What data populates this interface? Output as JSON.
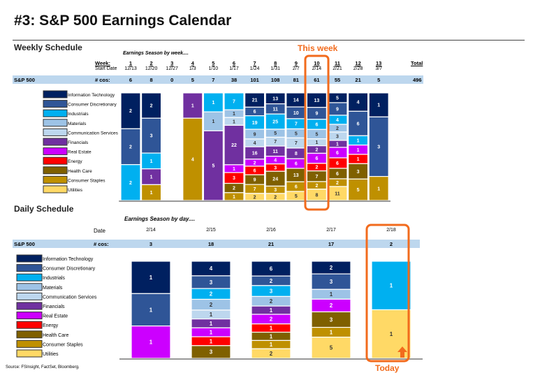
{
  "title": "#3: S&P 500 Earnings Calendar",
  "weekly": {
    "heading": "Weekly Schedule",
    "subtitle": "Earnings Season by week....",
    "week_label": "Week:",
    "start_label": "Start Date",
    "row_label": "S&P 500",
    "cos_label": "# cos:",
    "total_label": "Total",
    "total": "496",
    "annotation": "This week"
  },
  "daily": {
    "heading": "Daily Schedule",
    "subtitle": "Earnings Season by day....",
    "date_label": "Date",
    "row_label": "S&P 500",
    "cos_label": "# cos:",
    "annotation": "Today"
  },
  "source": "Source: FSInsight, FactSet, Bloomberg.",
  "chart_data": [
    {
      "type": "bar",
      "stacked": "percent",
      "title": "Earnings Season by week....",
      "categories": [
        "1",
        "2",
        "3",
        "4",
        "5",
        "6",
        "7",
        "8",
        "9",
        "10",
        "11",
        "12",
        "13"
      ],
      "start_dates": [
        "12/13",
        "12/20",
        "12/27",
        "1/3",
        "1/10",
        "1/17",
        "1/24",
        "1/31",
        "2/7",
        "2/14",
        "2/21",
        "2/28",
        "3/7"
      ],
      "totals": [
        6,
        8,
        0,
        5,
        7,
        38,
        101,
        108,
        81,
        61,
        55,
        21,
        5
      ],
      "highlight": "10",
      "series": [
        {
          "name": "Information Technology",
          "color": "#002060",
          "values": [
            2,
            2,
            0,
            0,
            0,
            0,
            21,
            13,
            14,
            13,
            5,
            4,
            1
          ]
        },
        {
          "name": "Consumer Discretionary",
          "color": "#2f5597",
          "values": [
            2,
            3,
            0,
            0,
            0,
            0,
            6,
            11,
            10,
            9,
            9,
            6,
            3
          ]
        },
        {
          "name": "Industrials",
          "color": "#00b0f0",
          "values": [
            2,
            1,
            0,
            0,
            1,
            7,
            19,
            25,
            7,
            6,
            4,
            1,
            0
          ]
        },
        {
          "name": "Materials",
          "color": "#9dc3e6",
          "values": [
            0,
            0,
            0,
            0,
            1,
            1,
            9,
            5,
            5,
            5,
            2,
            0,
            0
          ]
        },
        {
          "name": "Communication Services",
          "color": "#bdd7ee",
          "values": [
            0,
            0,
            0,
            0,
            0,
            1,
            4,
            7,
            7,
            1,
            3,
            0,
            0
          ]
        },
        {
          "name": "Financials",
          "color": "#7030a0",
          "values": [
            0,
            1,
            0,
            1,
            5,
            22,
            16,
            11,
            8,
            2,
            1,
            0,
            0
          ]
        },
        {
          "name": "Real Estate",
          "color": "#cc00ff",
          "values": [
            0,
            0,
            0,
            0,
            0,
            1,
            2,
            4,
            6,
            6,
            6,
            1,
            0
          ]
        },
        {
          "name": "Energy",
          "color": "#ff0000",
          "values": [
            0,
            0,
            0,
            0,
            0,
            3,
            6,
            3,
            0,
            2,
            6,
            1,
            0
          ]
        },
        {
          "name": "Health Care",
          "color": "#7f6000",
          "values": [
            0,
            0,
            0,
            0,
            0,
            2,
            9,
            24,
            13,
            7,
            6,
            3,
            0
          ]
        },
        {
          "name": "Consumer Staples",
          "color": "#bf9000",
          "values": [
            0,
            1,
            0,
            4,
            0,
            1,
            7,
            3,
            6,
            2,
            2,
            5,
            1
          ]
        },
        {
          "name": "Utilities",
          "color": "#ffd966",
          "values": [
            0,
            0,
            0,
            0,
            0,
            0,
            2,
            2,
            5,
            8,
            11,
            0,
            0
          ]
        }
      ]
    },
    {
      "type": "bar",
      "stacked": "percent",
      "title": "Earnings Season by day....",
      "categories": [
        "2/14",
        "2/15",
        "2/16",
        "2/17",
        "2/18"
      ],
      "totals": [
        3,
        18,
        21,
        17,
        2
      ],
      "highlight": "2/18",
      "series": [
        {
          "name": "Information Technology",
          "color": "#002060",
          "values": [
            1,
            4,
            6,
            2,
            0
          ]
        },
        {
          "name": "Consumer Discretionary",
          "color": "#2f5597",
          "values": [
            1,
            3,
            2,
            3,
            0
          ]
        },
        {
          "name": "Industrials",
          "color": "#00b0f0",
          "values": [
            0,
            2,
            3,
            0,
            1
          ]
        },
        {
          "name": "Materials",
          "color": "#9dc3e6",
          "values": [
            0,
            2,
            2,
            1,
            0
          ]
        },
        {
          "name": "Communication Services",
          "color": "#bdd7ee",
          "values": [
            0,
            1,
            0,
            0,
            0
          ]
        },
        {
          "name": "Financials",
          "color": "#7030a0",
          "values": [
            0,
            1,
            1,
            0,
            0
          ]
        },
        {
          "name": "Real Estate",
          "color": "#cc00ff",
          "values": [
            1,
            1,
            2,
            2,
            0
          ]
        },
        {
          "name": "Energy",
          "color": "#ff0000",
          "values": [
            0,
            1,
            1,
            0,
            0
          ]
        },
        {
          "name": "Health Care",
          "color": "#7f6000",
          "values": [
            0,
            3,
            1,
            3,
            0
          ]
        },
        {
          "name": "Consumer Staples",
          "color": "#bf9000",
          "values": [
            0,
            0,
            1,
            1,
            0
          ]
        },
        {
          "name": "Utilities",
          "color": "#ffd966",
          "values": [
            0,
            0,
            2,
            5,
            1
          ]
        }
      ]
    }
  ]
}
